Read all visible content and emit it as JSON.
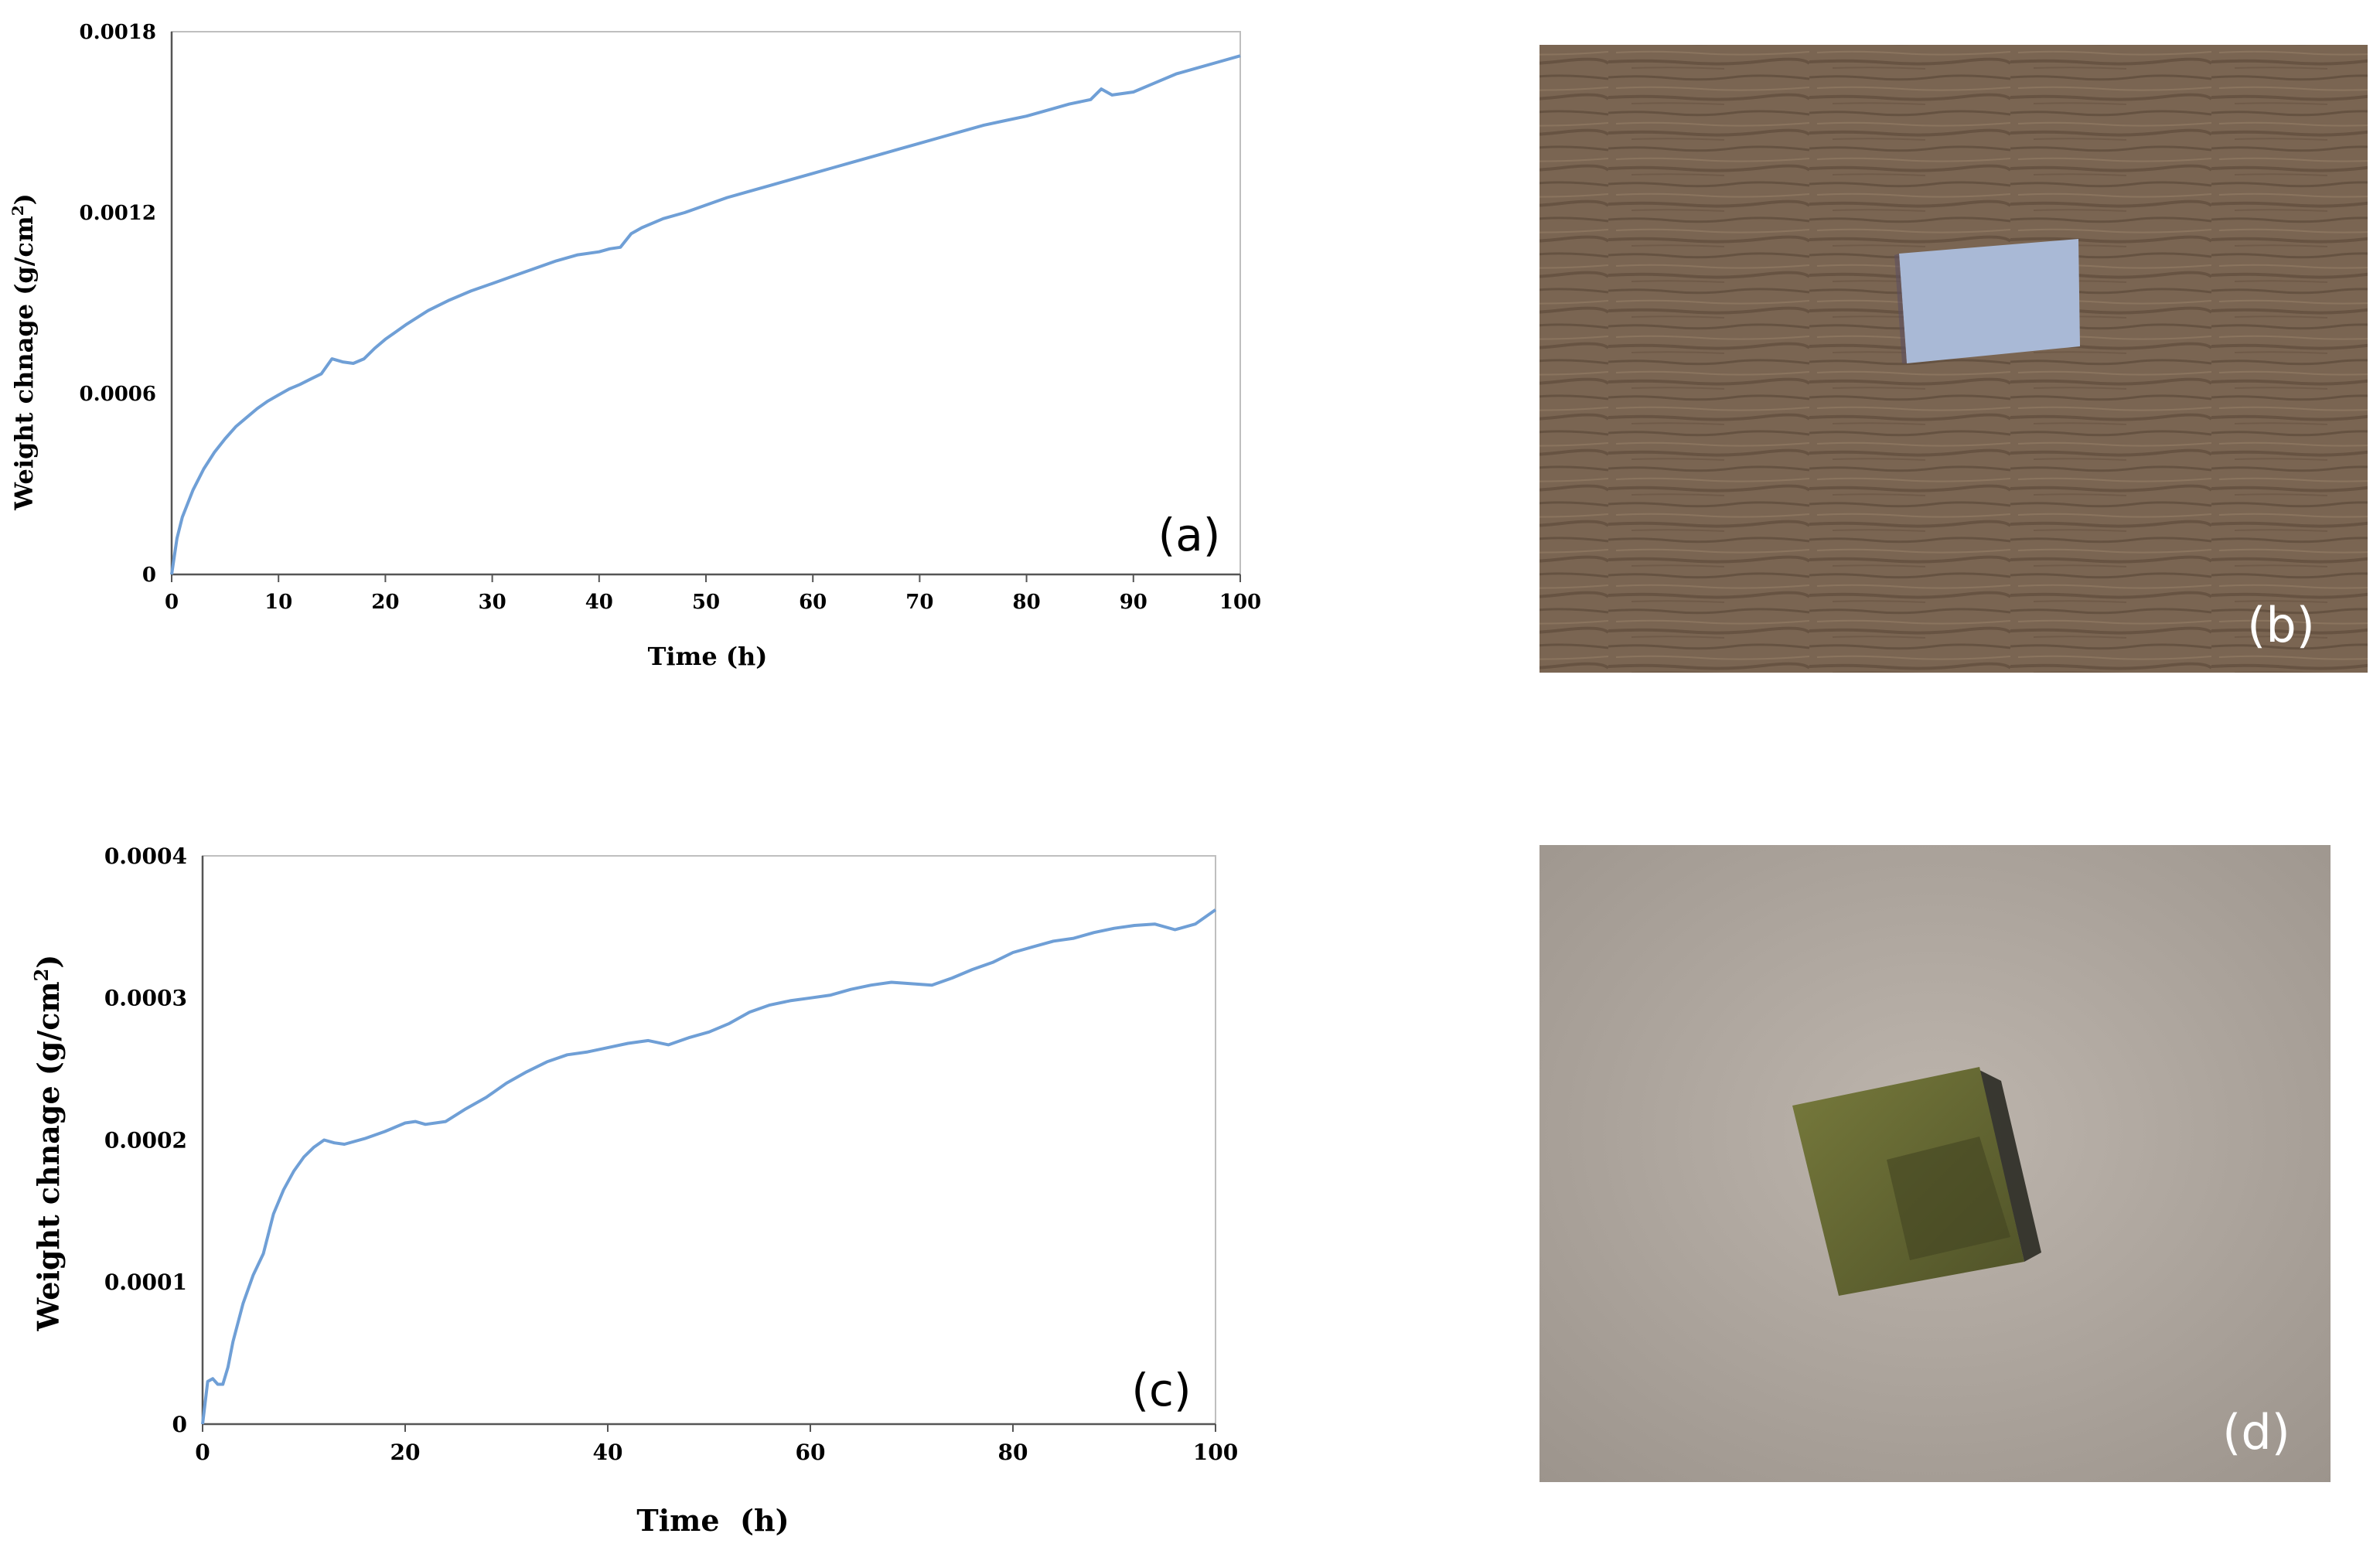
{
  "chart_data": [
    {
      "type": "line",
      "panel_label": "(a)",
      "xlabel": "Time (h)",
      "ylabel": "Weight chnage (g/cm²)",
      "xlim": [
        0,
        100
      ],
      "ylim": [
        0,
        0.0018
      ],
      "x_ticks": [
        "0",
        "10",
        "20",
        "30",
        "40",
        "50",
        "60",
        "70",
        "80",
        "90",
        "100"
      ],
      "y_ticks": [
        "0",
        "0.0006",
        "0.0012",
        "0.0018"
      ],
      "line_color": "#6f9fd6",
      "grid": false,
      "x": [
        0,
        0.5,
        1,
        2,
        3,
        4,
        5,
        6,
        7,
        8,
        9,
        10,
        11,
        12,
        13,
        14,
        15,
        16,
        17,
        18,
        19,
        20,
        22,
        24,
        26,
        28,
        30,
        32,
        34,
        36,
        38,
        40,
        41,
        42,
        43,
        44,
        46,
        48,
        50,
        52,
        54,
        56,
        58,
        60,
        62,
        64,
        66,
        68,
        70,
        72,
        74,
        76,
        78,
        80,
        82,
        84,
        86,
        87,
        88,
        90,
        92,
        94,
        96,
        98,
        100
      ],
      "y": [
        0,
        0.00012,
        0.00019,
        0.00028,
        0.00035,
        0.000405,
        0.00045,
        0.00049,
        0.00052,
        0.00055,
        0.000575,
        0.000595,
        0.000615,
        0.00063,
        0.000648,
        0.000665,
        0.000715,
        0.000705,
        0.0007,
        0.000715,
        0.00075,
        0.00078,
        0.00083,
        0.000875,
        0.00091,
        0.00094,
        0.000965,
        0.00099,
        0.001015,
        0.00104,
        0.00106,
        0.00107,
        0.00108,
        0.001085,
        0.00113,
        0.00115,
        0.00118,
        0.0012,
        0.001225,
        0.00125,
        0.00127,
        0.00129,
        0.00131,
        0.00133,
        0.00135,
        0.00137,
        0.00139,
        0.00141,
        0.00143,
        0.00145,
        0.00147,
        0.00149,
        0.001505,
        0.00152,
        0.00154,
        0.00156,
        0.001575,
        0.00161,
        0.00159,
        0.0016,
        0.00163,
        0.00166,
        0.00168,
        0.0017,
        0.00172
      ]
    },
    {
      "type": "line",
      "panel_label": "(c)",
      "xlabel": "Time  (h)",
      "ylabel": "Weight chnage (g/cm²)",
      "xlim": [
        0,
        100
      ],
      "ylim": [
        0,
        0.0004
      ],
      "x_ticks": [
        "0",
        "20",
        "40",
        "60",
        "80",
        "100"
      ],
      "y_ticks": [
        "0",
        "0.0001",
        "0.0002",
        "0.0003",
        "0.0004"
      ],
      "line_color": "#6f9fd6",
      "grid": false,
      "x": [
        0,
        0.5,
        1,
        1.5,
        2,
        2.5,
        3,
        4,
        5,
        6,
        7,
        8,
        9,
        10,
        11,
        12,
        13,
        14,
        16,
        18,
        20,
        21,
        22,
        24,
        26,
        28,
        30,
        32,
        34,
        36,
        38,
        40,
        42,
        44,
        46,
        48,
        50,
        52,
        54,
        56,
        58,
        60,
        62,
        64,
        66,
        68,
        70,
        72,
        74,
        76,
        78,
        80,
        82,
        84,
        86,
        88,
        90,
        92,
        94,
        96,
        98,
        100
      ],
      "y": [
        0,
        3e-05,
        3.2e-05,
        2.8e-05,
        2.8e-05,
        4e-05,
        5.8e-05,
        8.5e-05,
        0.000105,
        0.00012,
        0.000148,
        0.000165,
        0.000178,
        0.000188,
        0.000195,
        0.0002,
        0.000198,
        0.000197,
        0.000201,
        0.000206,
        0.000212,
        0.000213,
        0.000211,
        0.000213,
        0.000222,
        0.00023,
        0.00024,
        0.000248,
        0.000255,
        0.00026,
        0.000262,
        0.000265,
        0.000268,
        0.00027,
        0.000267,
        0.000272,
        0.000276,
        0.000282,
        0.00029,
        0.000295,
        0.000298,
        0.0003,
        0.000302,
        0.000306,
        0.000309,
        0.000311,
        0.00031,
        0.000309,
        0.000314,
        0.00032,
        0.000325,
        0.000332,
        0.000336,
        0.00034,
        0.000342,
        0.000346,
        0.000349,
        0.000351,
        0.000352,
        0.000348,
        0.000352,
        0.000362
      ]
    }
  ],
  "photos": [
    {
      "panel_label": "(b)",
      "background_color": "#7a6552",
      "object_color": "#a9b9d6"
    },
    {
      "panel_label": "(d)",
      "background_color": "#b1a9a1",
      "object_color": "#5f6232"
    }
  ]
}
